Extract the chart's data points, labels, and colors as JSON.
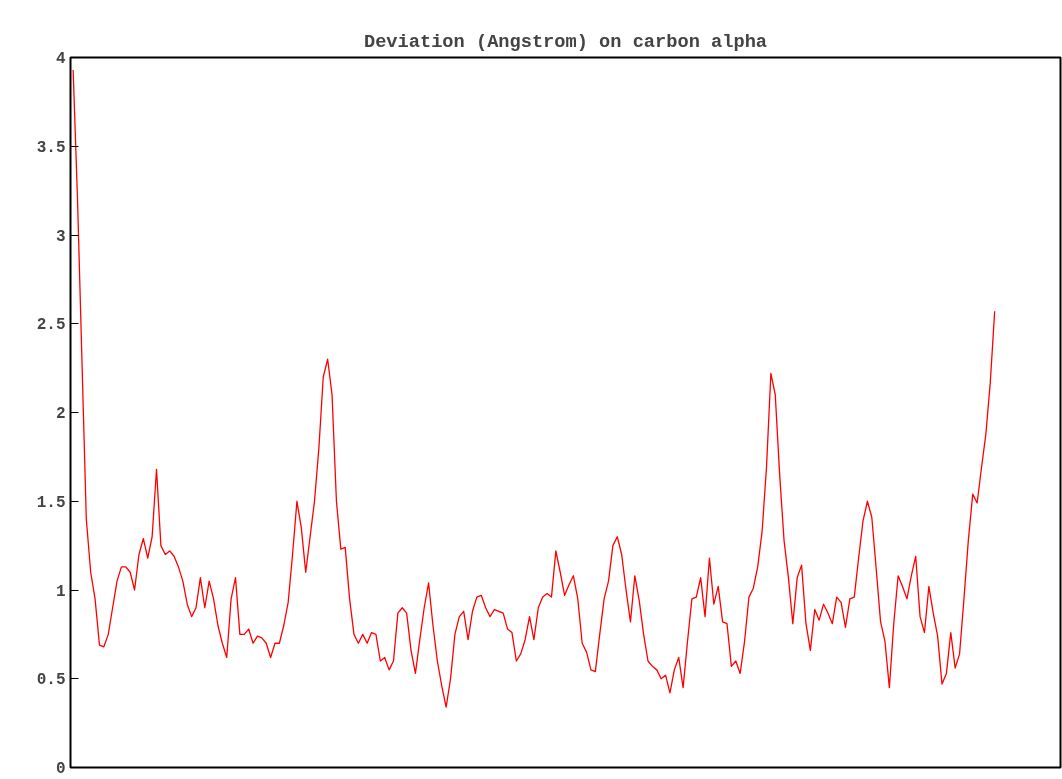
{
  "chart_data": {
    "type": "line",
    "title": "Deviation (Angstrom) on carbon alpha",
    "categories": [
      null,
      null,
      null,
      null,
      null,
      null,
      null,
      null,
      null,
      null,
      null,
      null,
      null,
      null,
      null,
      null,
      null,
      null,
      null,
      null,
      null,
      null,
      null,
      null,
      null,
      null,
      null,
      null,
      null,
      null,
      null,
      null,
      null,
      null,
      null,
      null,
      null,
      null,
      null,
      null,
      null,
      null,
      null,
      null,
      null,
      null,
      null,
      null,
      null,
      null,
      null,
      null,
      null,
      null,
      null,
      null,
      null,
      null,
      null,
      null,
      null,
      null,
      null,
      null,
      null,
      null,
      null,
      null,
      null,
      null,
      null,
      null,
      null,
      null,
      null,
      null,
      null,
      null,
      null,
      null,
      null,
      null,
      null,
      null,
      null,
      null,
      null,
      null,
      null,
      null,
      null,
      null,
      null,
      null,
      null,
      null,
      null,
      null,
      null,
      null,
      null,
      null,
      null,
      null,
      null,
      null,
      null,
      null,
      null,
      null,
      null,
      null,
      null,
      null,
      null,
      null,
      null,
      null,
      null,
      null,
      null,
      null,
      null,
      null,
      null,
      null,
      null,
      null,
      null,
      null,
      null,
      null,
      null,
      null,
      null,
      null,
      null,
      null,
      null,
      null,
      null,
      null,
      null,
      null,
      null,
      null,
      null,
      null,
      null,
      null,
      null,
      null,
      null,
      null,
      null,
      null,
      null,
      null,
      null,
      null,
      null,
      null,
      null,
      null,
      null,
      null,
      null,
      null,
      null,
      null,
      null,
      null,
      null,
      null,
      null,
      null,
      null,
      null,
      null,
      null,
      null,
      null,
      null,
      null,
      null,
      null,
      null,
      null,
      null,
      null,
      null,
      null,
      null,
      null,
      null,
      null,
      null,
      null,
      null,
      null,
      null,
      null,
      null,
      null,
      null,
      null,
      null,
      null,
      null,
      null,
      null
    ],
    "series": [
      {
        "color": "#ff0000",
        "values": [
          3.93,
          3.2,
          2.3,
          1.4,
          1.1,
          0.95,
          0.69,
          0.68,
          0.75,
          0.9,
          1.05,
          1.13,
          1.13,
          1.1,
          1.0,
          1.2,
          1.29,
          1.18,
          1.3,
          1.68,
          1.25,
          1.2,
          1.22,
          1.19,
          1.13,
          1.05,
          0.92,
          0.85,
          0.9,
          1.07,
          0.9,
          1.05,
          0.95,
          0.8,
          0.7,
          0.62,
          0.95,
          1.07,
          0.75,
          0.75,
          0.78,
          0.7,
          0.74,
          0.73,
          0.7,
          0.62,
          0.7,
          0.7,
          0.8,
          0.93,
          1.2,
          1.5,
          1.35,
          1.1,
          1.3,
          1.5,
          1.8,
          2.2,
          2.3,
          2.1,
          1.5,
          1.23,
          1.24,
          0.95,
          0.75,
          0.7,
          0.75,
          0.7,
          0.76,
          0.75,
          0.6,
          0.62,
          0.55,
          0.6,
          0.87,
          0.9,
          0.87,
          0.66,
          0.53,
          0.72,
          0.9,
          1.04,
          0.8,
          0.6,
          0.46,
          0.34,
          0.5,
          0.75,
          0.85,
          0.88,
          0.72,
          0.88,
          0.96,
          0.97,
          0.9,
          0.85,
          0.89,
          0.88,
          0.87,
          0.78,
          0.76,
          0.6,
          0.64,
          0.72,
          0.85,
          0.72,
          0.9,
          0.96,
          0.98,
          0.96,
          1.22,
          1.1,
          0.97,
          1.03,
          1.08,
          0.95,
          0.7,
          0.65,
          0.55,
          0.54,
          0.75,
          0.95,
          1.05,
          1.25,
          1.3,
          1.2,
          1.0,
          0.82,
          1.08,
          0.94,
          0.75,
          0.6,
          0.57,
          0.55,
          0.5,
          0.52,
          0.42,
          0.55,
          0.62,
          0.45,
          0.71,
          0.95,
          0.96,
          1.07,
          0.85,
          1.18,
          0.92,
          1.02,
          0.82,
          0.81,
          0.57,
          0.6,
          0.53,
          0.71,
          0.96,
          1.01,
          1.13,
          1.33,
          1.69,
          2.22,
          2.1,
          1.65,
          1.28,
          1.07,
          0.81,
          1.07,
          1.14,
          0.81,
          0.66,
          0.89,
          0.83,
          0.92,
          0.87,
          0.81,
          0.96,
          0.93,
          0.79,
          0.95,
          0.96,
          1.18,
          1.39,
          1.5,
          1.41,
          1.12,
          0.82,
          0.71,
          0.45,
          0.81,
          1.08,
          1.02,
          0.95,
          1.08,
          1.19,
          0.85,
          0.76,
          1.02,
          0.87,
          0.74,
          0.47,
          0.53,
          0.76,
          0.56,
          0.64,
          0.95,
          1.28,
          1.54,
          1.49,
          1.69,
          1.88,
          2.17,
          2.57
        ]
      }
    ],
    "ylim": [
      0,
      4
    ],
    "yticks": [
      0,
      0.5,
      1,
      1.5,
      2,
      2.5,
      3,
      3.5,
      4
    ],
    "line_style": "solid"
  }
}
